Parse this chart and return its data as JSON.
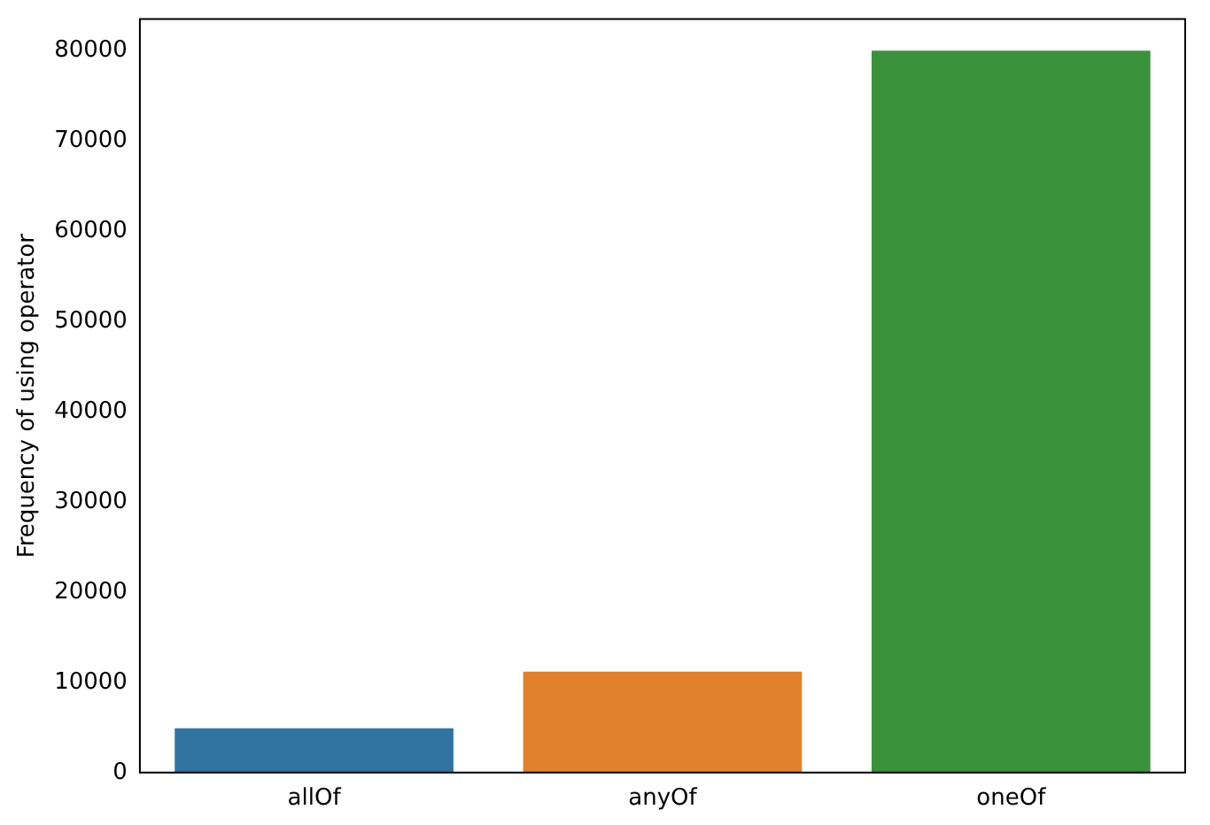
{
  "chart_data": {
    "type": "bar",
    "ylabel": "Frequency of using operator",
    "categories": [
      "allOf",
      "anyOf",
      "oneOf"
    ],
    "values": [
      4900,
      11200,
      80000
    ],
    "colors": [
      "#3274a1",
      "#e1812c",
      "#3a923a"
    ],
    "ylim": [
      0,
      83500
    ],
    "yticks": [
      0,
      10000,
      20000,
      30000,
      40000,
      50000,
      60000,
      70000,
      80000
    ],
    "grid": false,
    "legend": false
  }
}
